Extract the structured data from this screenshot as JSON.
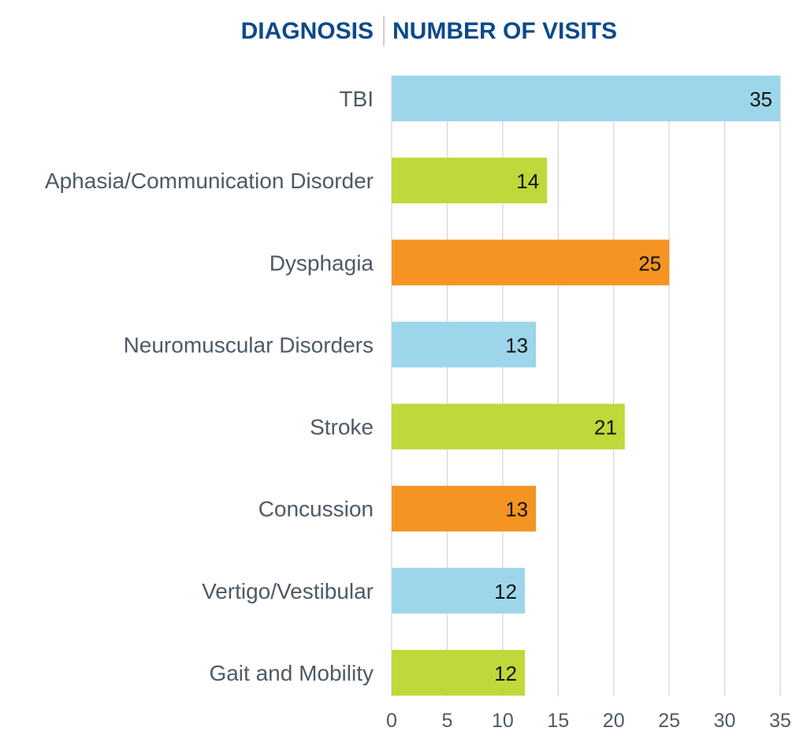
{
  "header": {
    "left_title": "DIAGNOSIS",
    "right_title": "NUMBER OF VISITS"
  },
  "colors": {
    "blue": "#9dd6ea",
    "green": "#c0d83a",
    "orange": "#f59422",
    "header": "#0b4a8b",
    "label": "#4d5a66",
    "grid": "#d4d4d4"
  },
  "chart_data": {
    "type": "bar",
    "orientation": "horizontal",
    "categories": [
      "TBI",
      "Aphasia/Communication Disorder",
      "Dysphagia",
      "Neuromuscular Disorders",
      "Stroke",
      "Concussion",
      "Vertigo/Vestibular",
      "Gait and Mobility"
    ],
    "values": [
      35,
      14,
      25,
      13,
      21,
      13,
      12,
      12
    ],
    "value_labels": [
      "35",
      "14",
      "25",
      "13",
      "21",
      "13",
      "12",
      "12"
    ],
    "bar_colors": [
      "#9dd6ea",
      "#c0d83a",
      "#f59422",
      "#9dd6ea",
      "#c0d83a",
      "#f59422",
      "#9dd6ea",
      "#c0d83a"
    ],
    "xlim": [
      0,
      35
    ],
    "xticks": [
      0,
      5,
      10,
      15,
      20,
      25,
      30,
      35
    ],
    "tick_labels": [
      "0",
      "5",
      "10",
      "15",
      "20",
      "25",
      "30",
      "35"
    ],
    "grid": "vertical",
    "legend": "none"
  }
}
